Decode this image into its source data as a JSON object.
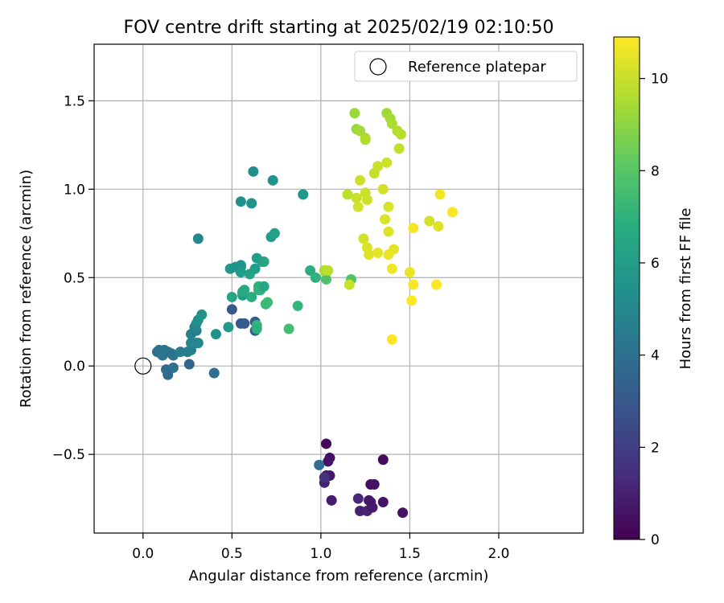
{
  "chart_data": {
    "type": "scatter",
    "title": "FOV centre drift starting at 2025/02/19 02:10:50",
    "xlabel": "Angular distance from reference (arcmin)",
    "ylabel": "Rotation from reference (arcmin)",
    "xlim": [
      -0.275,
      2.475
    ],
    "ylim": [
      -0.945,
      1.82
    ],
    "xticks": [
      0.0,
      0.5,
      1.0,
      1.5,
      2.0
    ],
    "xtick_labels": [
      "0.0",
      "0.5",
      "1.0",
      "1.5",
      "2.0"
    ],
    "yticks": [
      -0.5,
      0.0,
      0.5,
      1.0,
      1.5
    ],
    "ytick_labels": [
      "−0.5",
      "0.0",
      "0.5",
      "1.0",
      "1.5"
    ],
    "grid": true,
    "legend": {
      "placement": "upper right",
      "entries": [
        "Reference platepar"
      ]
    },
    "reference_point": {
      "x": 0.0,
      "y": 0.0
    },
    "colorbar": {
      "label": "Hours from first FF file",
      "colormap": "viridis",
      "range": [
        0,
        10.9
      ],
      "ticks": [
        0,
        2,
        4,
        6,
        8,
        10
      ],
      "tick_labels": [
        "0",
        "2",
        "4",
        "6",
        "8",
        "10"
      ]
    },
    "points": [
      {
        "x": 1.03,
        "y": -0.44,
        "h": 0.2
      },
      {
        "x": 1.35,
        "y": -0.53,
        "h": 0.3
      },
      {
        "x": 1.05,
        "y": -0.52,
        "h": 0.4
      },
      {
        "x": 1.04,
        "y": -0.54,
        "h": 0.6
      },
      {
        "x": 1.03,
        "y": -0.62,
        "h": 0.5
      },
      {
        "x": 1.05,
        "y": -0.62,
        "h": 0.7
      },
      {
        "x": 1.28,
        "y": -0.67,
        "h": 0.4
      },
      {
        "x": 1.3,
        "y": -0.67,
        "h": 0.5
      },
      {
        "x": 1.02,
        "y": -0.66,
        "h": 1.0
      },
      {
        "x": 1.06,
        "y": -0.76,
        "h": 0.8
      },
      {
        "x": 1.28,
        "y": -0.77,
        "h": 0.9
      },
      {
        "x": 1.35,
        "y": -0.77,
        "h": 0.6
      },
      {
        "x": 1.21,
        "y": -0.75,
        "h": 1.2
      },
      {
        "x": 1.22,
        "y": -0.82,
        "h": 1.0
      },
      {
        "x": 1.26,
        "y": -0.82,
        "h": 1.1
      },
      {
        "x": 1.29,
        "y": -0.8,
        "h": 0.8
      },
      {
        "x": 1.46,
        "y": -0.83,
        "h": 0.5
      },
      {
        "x": 1.27,
        "y": -0.76,
        "h": 0.7
      },
      {
        "x": 0.99,
        "y": -0.56,
        "h": 3.9
      },
      {
        "x": 1.02,
        "y": -0.63,
        "h": 1.6
      },
      {
        "x": 0.5,
        "y": 0.32,
        "h": 3.0
      },
      {
        "x": 0.55,
        "y": 0.24,
        "h": 2.9
      },
      {
        "x": 0.57,
        "y": 0.24,
        "h": 3.1
      },
      {
        "x": 0.63,
        "y": 0.2,
        "h": 3.3
      },
      {
        "x": 0.63,
        "y": 0.25,
        "h": 3.2
      },
      {
        "x": 0.26,
        "y": 0.01,
        "h": 3.5
      },
      {
        "x": 0.4,
        "y": -0.04,
        "h": 3.9
      },
      {
        "x": 0.14,
        "y": -0.05,
        "h": 3.7
      },
      {
        "x": 0.13,
        "y": -0.02,
        "h": 3.8
      },
      {
        "x": 0.17,
        "y": -0.01,
        "h": 4.0
      },
      {
        "x": 0.08,
        "y": 0.08,
        "h": 4.0
      },
      {
        "x": 0.09,
        "y": 0.09,
        "h": 4.1
      },
      {
        "x": 0.1,
        "y": 0.07,
        "h": 4.2
      },
      {
        "x": 0.12,
        "y": 0.09,
        "h": 4.1
      },
      {
        "x": 0.11,
        "y": 0.06,
        "h": 4.3
      },
      {
        "x": 0.14,
        "y": 0.08,
        "h": 4.4
      },
      {
        "x": 0.16,
        "y": 0.07,
        "h": 4.0
      },
      {
        "x": 0.17,
        "y": 0.06,
        "h": 4.2
      },
      {
        "x": 0.21,
        "y": 0.08,
        "h": 4.6
      },
      {
        "x": 0.25,
        "y": 0.08,
        "h": 4.7
      },
      {
        "x": 0.27,
        "y": 0.09,
        "h": 4.8
      },
      {
        "x": 0.27,
        "y": 0.13,
        "h": 4.9
      },
      {
        "x": 0.3,
        "y": 0.13,
        "h": 5.1
      },
      {
        "x": 0.31,
        "y": 0.13,
        "h": 5.0
      },
      {
        "x": 0.27,
        "y": 0.18,
        "h": 4.8
      },
      {
        "x": 0.3,
        "y": 0.2,
        "h": 4.6
      },
      {
        "x": 0.29,
        "y": 0.22,
        "h": 4.9
      },
      {
        "x": 0.3,
        "y": 0.24,
        "h": 5.2
      },
      {
        "x": 0.31,
        "y": 0.26,
        "h": 5.4
      },
      {
        "x": 0.33,
        "y": 0.29,
        "h": 5.6
      },
      {
        "x": 0.41,
        "y": 0.18,
        "h": 5.6
      },
      {
        "x": 0.31,
        "y": 0.72,
        "h": 5.0
      },
      {
        "x": 0.48,
        "y": 0.22,
        "h": 5.8
      },
      {
        "x": 0.5,
        "y": 0.39,
        "h": 6.4
      },
      {
        "x": 0.49,
        "y": 0.55,
        "h": 5.7
      },
      {
        "x": 0.52,
        "y": 0.56,
        "h": 5.6
      },
      {
        "x": 0.55,
        "y": 0.56,
        "h": 5.7
      },
      {
        "x": 0.55,
        "y": 0.57,
        "h": 5.6
      },
      {
        "x": 0.55,
        "y": 0.53,
        "h": 6.0
      },
      {
        "x": 0.56,
        "y": 0.41,
        "h": 6.2
      },
      {
        "x": 0.56,
        "y": 0.4,
        "h": 6.0
      },
      {
        "x": 0.56,
        "y": 0.42,
        "h": 6.5
      },
      {
        "x": 0.57,
        "y": 0.43,
        "h": 6.6
      },
      {
        "x": 0.6,
        "y": 0.52,
        "h": 6.3
      },
      {
        "x": 0.61,
        "y": 0.39,
        "h": 6.7
      },
      {
        "x": 0.63,
        "y": 0.55,
        "h": 6.1
      },
      {
        "x": 0.64,
        "y": 0.61,
        "h": 6.0
      },
      {
        "x": 0.65,
        "y": 0.43,
        "h": 6.8
      },
      {
        "x": 0.65,
        "y": 0.45,
        "h": 6.9
      },
      {
        "x": 0.66,
        "y": 0.43,
        "h": 7.0
      },
      {
        "x": 0.67,
        "y": 0.59,
        "h": 6.2
      },
      {
        "x": 0.68,
        "y": 0.59,
        "h": 6.4
      },
      {
        "x": 0.68,
        "y": 0.45,
        "h": 6.5
      },
      {
        "x": 0.69,
        "y": 0.35,
        "h": 7.3
      },
      {
        "x": 0.7,
        "y": 0.36,
        "h": 7.4
      },
      {
        "x": 0.64,
        "y": 0.23,
        "h": 7.2
      },
      {
        "x": 0.64,
        "y": 0.21,
        "h": 6.9
      },
      {
        "x": 0.55,
        "y": 0.93,
        "h": 5.4
      },
      {
        "x": 0.61,
        "y": 0.92,
        "h": 5.6
      },
      {
        "x": 0.62,
        "y": 1.1,
        "h": 5.3
      },
      {
        "x": 0.73,
        "y": 1.05,
        "h": 5.5
      },
      {
        "x": 0.72,
        "y": 0.73,
        "h": 6.0
      },
      {
        "x": 0.74,
        "y": 0.75,
        "h": 6.2
      },
      {
        "x": 0.9,
        "y": 0.97,
        "h": 5.8
      },
      {
        "x": 0.82,
        "y": 0.21,
        "h": 7.6
      },
      {
        "x": 0.87,
        "y": 0.34,
        "h": 7.2
      },
      {
        "x": 0.94,
        "y": 0.54,
        "h": 6.8
      },
      {
        "x": 0.97,
        "y": 0.5,
        "h": 7.0
      },
      {
        "x": 1.03,
        "y": 0.53,
        "h": 7.6
      },
      {
        "x": 1.03,
        "y": 0.49,
        "h": 7.8
      },
      {
        "x": 1.02,
        "y": 0.54,
        "h": 9.6
      },
      {
        "x": 1.04,
        "y": 0.54,
        "h": 9.8
      },
      {
        "x": 1.17,
        "y": 0.49,
        "h": 7.9
      },
      {
        "x": 1.16,
        "y": 0.46,
        "h": 10.0
      },
      {
        "x": 1.19,
        "y": 1.43,
        "h": 9.2
      },
      {
        "x": 1.2,
        "y": 1.34,
        "h": 9.2
      },
      {
        "x": 1.22,
        "y": 1.33,
        "h": 9.4
      },
      {
        "x": 1.25,
        "y": 1.29,
        "h": 9.5
      },
      {
        "x": 1.25,
        "y": 1.28,
        "h": 9.6
      },
      {
        "x": 1.37,
        "y": 1.43,
        "h": 9.3
      },
      {
        "x": 1.39,
        "y": 1.4,
        "h": 9.4
      },
      {
        "x": 1.4,
        "y": 1.37,
        "h": 9.5
      },
      {
        "x": 1.43,
        "y": 1.33,
        "h": 9.6
      },
      {
        "x": 1.45,
        "y": 1.31,
        "h": 9.7
      },
      {
        "x": 1.44,
        "y": 1.23,
        "h": 9.9
      },
      {
        "x": 1.3,
        "y": 1.09,
        "h": 9.9
      },
      {
        "x": 1.32,
        "y": 1.13,
        "h": 10.0
      },
      {
        "x": 1.37,
        "y": 1.15,
        "h": 10.1
      },
      {
        "x": 1.15,
        "y": 0.97,
        "h": 9.8
      },
      {
        "x": 1.2,
        "y": 0.95,
        "h": 10.0
      },
      {
        "x": 1.22,
        "y": 1.05,
        "h": 10.1
      },
      {
        "x": 1.25,
        "y": 0.98,
        "h": 10.0
      },
      {
        "x": 1.26,
        "y": 0.94,
        "h": 10.1
      },
      {
        "x": 1.21,
        "y": 0.9,
        "h": 10.2
      },
      {
        "x": 1.35,
        "y": 1.0,
        "h": 10.2
      },
      {
        "x": 1.38,
        "y": 0.9,
        "h": 10.3
      },
      {
        "x": 1.36,
        "y": 0.83,
        "h": 10.3
      },
      {
        "x": 1.38,
        "y": 0.76,
        "h": 10.4
      },
      {
        "x": 1.24,
        "y": 0.72,
        "h": 10.2
      },
      {
        "x": 1.26,
        "y": 0.67,
        "h": 10.3
      },
      {
        "x": 1.27,
        "y": 0.63,
        "h": 10.4
      },
      {
        "x": 1.32,
        "y": 0.64,
        "h": 10.5
      },
      {
        "x": 1.38,
        "y": 0.63,
        "h": 10.6
      },
      {
        "x": 1.41,
        "y": 0.66,
        "h": 10.5
      },
      {
        "x": 1.4,
        "y": 0.55,
        "h": 10.7
      },
      {
        "x": 1.4,
        "y": 0.15,
        "h": 10.9
      },
      {
        "x": 1.5,
        "y": 0.53,
        "h": 10.6
      },
      {
        "x": 1.52,
        "y": 0.46,
        "h": 10.8
      },
      {
        "x": 1.51,
        "y": 0.37,
        "h": 10.9
      },
      {
        "x": 1.52,
        "y": 0.78,
        "h": 10.8
      },
      {
        "x": 1.61,
        "y": 0.82,
        "h": 10.2
      },
      {
        "x": 1.66,
        "y": 0.79,
        "h": 10.4
      },
      {
        "x": 1.67,
        "y": 0.97,
        "h": 10.7
      },
      {
        "x": 1.74,
        "y": 0.87,
        "h": 10.8
      },
      {
        "x": 1.65,
        "y": 0.46,
        "h": 10.9
      }
    ]
  }
}
